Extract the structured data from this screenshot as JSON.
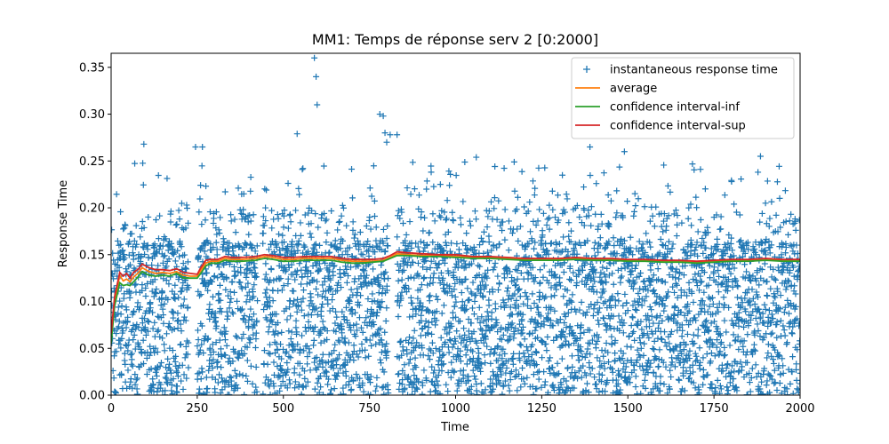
{
  "chart_data": {
    "type": "scatter",
    "title": "MM1: Temps de réponse serv 2 [0:2000]",
    "xlabel": "Time",
    "ylabel": "Response Time",
    "xlim": [
      0,
      2000
    ],
    "ylim": [
      0,
      0.365
    ],
    "x_ticks": [
      0,
      250,
      500,
      750,
      1000,
      1250,
      1500,
      1750,
      2000
    ],
    "y_ticks": [
      0.0,
      0.05,
      0.1,
      0.15,
      0.2,
      0.25,
      0.3,
      0.35
    ],
    "y_tick_labels": [
      "0.00",
      "0.05",
      "0.10",
      "0.15",
      "0.20",
      "0.25",
      "0.30",
      "0.35"
    ],
    "legend_position": "upper-right",
    "series": [
      {
        "name": "instantaneous response time",
        "kind": "scatter",
        "marker": "plus",
        "color": "#1f77b4",
        "notable_points": [
          {
            "x": 590,
            "y": 0.36
          },
          {
            "x": 595,
            "y": 0.34
          },
          {
            "x": 598,
            "y": 0.31
          },
          {
            "x": 780,
            "y": 0.3
          },
          {
            "x": 790,
            "y": 0.298
          },
          {
            "x": 795,
            "y": 0.28
          },
          {
            "x": 810,
            "y": 0.278
          },
          {
            "x": 830,
            "y": 0.278
          },
          {
            "x": 540,
            "y": 0.279
          },
          {
            "x": 95,
            "y": 0.268
          },
          {
            "x": 245,
            "y": 0.265
          },
          {
            "x": 265,
            "y": 0.265
          },
          {
            "x": 1060,
            "y": 0.254
          },
          {
            "x": 1490,
            "y": 0.26
          },
          {
            "x": 1390,
            "y": 0.265
          },
          {
            "x": 1885,
            "y": 0.255
          },
          {
            "x": 800,
            "y": 0.27
          }
        ]
      },
      {
        "name": "average",
        "kind": "line",
        "color": "#ff7f0e",
        "points": [
          [
            0,
            0.06
          ],
          [
            10,
            0.1
          ],
          [
            25,
            0.128
          ],
          [
            35,
            0.122
          ],
          [
            45,
            0.124
          ],
          [
            55,
            0.121
          ],
          [
            65,
            0.126
          ],
          [
            80,
            0.131
          ],
          [
            90,
            0.136
          ],
          [
            110,
            0.132
          ],
          [
            130,
            0.13
          ],
          [
            150,
            0.131
          ],
          [
            170,
            0.13
          ],
          [
            190,
            0.132
          ],
          [
            210,
            0.128
          ],
          [
            230,
            0.127
          ],
          [
            250,
            0.127
          ],
          [
            260,
            0.133
          ],
          [
            275,
            0.141
          ],
          [
            290,
            0.143
          ],
          [
            310,
            0.143
          ],
          [
            330,
            0.146
          ],
          [
            350,
            0.145
          ],
          [
            380,
            0.145
          ],
          [
            420,
            0.146
          ],
          [
            445,
            0.148
          ],
          [
            470,
            0.147
          ],
          [
            500,
            0.145
          ],
          [
            530,
            0.145
          ],
          [
            560,
            0.146
          ],
          [
            600,
            0.146
          ],
          [
            640,
            0.146
          ],
          [
            670,
            0.144
          ],
          [
            700,
            0.143
          ],
          [
            730,
            0.143
          ],
          [
            760,
            0.143
          ],
          [
            790,
            0.144
          ],
          [
            810,
            0.147
          ],
          [
            830,
            0.151
          ],
          [
            860,
            0.15
          ],
          [
            900,
            0.149
          ],
          [
            950,
            0.149
          ],
          [
            1000,
            0.148
          ],
          [
            1050,
            0.147
          ],
          [
            1100,
            0.147
          ],
          [
            1150,
            0.146
          ],
          [
            1200,
            0.145
          ],
          [
            1250,
            0.145
          ],
          [
            1300,
            0.145
          ],
          [
            1350,
            0.146
          ],
          [
            1400,
            0.145
          ],
          [
            1450,
            0.145
          ],
          [
            1500,
            0.144
          ],
          [
            1550,
            0.144
          ],
          [
            1600,
            0.143
          ],
          [
            1650,
            0.143
          ],
          [
            1700,
            0.142
          ],
          [
            1750,
            0.143
          ],
          [
            1800,
            0.144
          ],
          [
            1850,
            0.144
          ],
          [
            1900,
            0.145
          ],
          [
            1950,
            0.144
          ],
          [
            2000,
            0.144
          ]
        ]
      },
      {
        "name": "confidence interval-inf",
        "kind": "line",
        "color": "#2ca02c",
        "points": [
          [
            0,
            0.055
          ],
          [
            10,
            0.095
          ],
          [
            25,
            0.12
          ],
          [
            35,
            0.117
          ],
          [
            45,
            0.118
          ],
          [
            55,
            0.117
          ],
          [
            65,
            0.121
          ],
          [
            80,
            0.127
          ],
          [
            90,
            0.132
          ],
          [
            110,
            0.128
          ],
          [
            130,
            0.127
          ],
          [
            150,
            0.128
          ],
          [
            170,
            0.127
          ],
          [
            190,
            0.13
          ],
          [
            210,
            0.125
          ],
          [
            230,
            0.125
          ],
          [
            250,
            0.125
          ],
          [
            260,
            0.13
          ],
          [
            275,
            0.138
          ],
          [
            290,
            0.141
          ],
          [
            310,
            0.141
          ],
          [
            330,
            0.144
          ],
          [
            350,
            0.143
          ],
          [
            380,
            0.143
          ],
          [
            420,
            0.144
          ],
          [
            445,
            0.146
          ],
          [
            470,
            0.145
          ],
          [
            500,
            0.143
          ],
          [
            530,
            0.143
          ],
          [
            560,
            0.144
          ],
          [
            600,
            0.144
          ],
          [
            640,
            0.144
          ],
          [
            670,
            0.142
          ],
          [
            700,
            0.141
          ],
          [
            730,
            0.141
          ],
          [
            760,
            0.142
          ],
          [
            790,
            0.143
          ],
          [
            810,
            0.146
          ],
          [
            830,
            0.149
          ],
          [
            860,
            0.149
          ],
          [
            900,
            0.148
          ],
          [
            950,
            0.148
          ],
          [
            1000,
            0.147
          ],
          [
            1050,
            0.146
          ],
          [
            1100,
            0.146
          ],
          [
            1150,
            0.145
          ],
          [
            1200,
            0.144
          ],
          [
            1250,
            0.144
          ],
          [
            1300,
            0.144
          ],
          [
            1350,
            0.145
          ],
          [
            1400,
            0.144
          ],
          [
            1450,
            0.144
          ],
          [
            1500,
            0.143
          ],
          [
            1550,
            0.143
          ],
          [
            1600,
            0.142
          ],
          [
            1650,
            0.142
          ],
          [
            1700,
            0.141
          ],
          [
            1750,
            0.142
          ],
          [
            1800,
            0.143
          ],
          [
            1850,
            0.143
          ],
          [
            1900,
            0.144
          ],
          [
            1950,
            0.143
          ],
          [
            2000,
            0.143
          ]
        ]
      },
      {
        "name": "confidence interval-sup",
        "kind": "line",
        "color": "#d62728",
        "points": [
          [
            0,
            0.066
          ],
          [
            10,
            0.105
          ],
          [
            25,
            0.131
          ],
          [
            35,
            0.127
          ],
          [
            45,
            0.13
          ],
          [
            55,
            0.125
          ],
          [
            65,
            0.131
          ],
          [
            80,
            0.135
          ],
          [
            90,
            0.14
          ],
          [
            110,
            0.136
          ],
          [
            130,
            0.134
          ],
          [
            150,
            0.134
          ],
          [
            170,
            0.133
          ],
          [
            190,
            0.135
          ],
          [
            210,
            0.131
          ],
          [
            230,
            0.13
          ],
          [
            250,
            0.129
          ],
          [
            260,
            0.136
          ],
          [
            275,
            0.144
          ],
          [
            290,
            0.145
          ],
          [
            310,
            0.145
          ],
          [
            330,
            0.148
          ],
          [
            350,
            0.147
          ],
          [
            380,
            0.147
          ],
          [
            420,
            0.148
          ],
          [
            445,
            0.15
          ],
          [
            470,
            0.149
          ],
          [
            500,
            0.147
          ],
          [
            530,
            0.147
          ],
          [
            560,
            0.148
          ],
          [
            600,
            0.148
          ],
          [
            640,
            0.148
          ],
          [
            670,
            0.146
          ],
          [
            700,
            0.145
          ],
          [
            730,
            0.145
          ],
          [
            760,
            0.145
          ],
          [
            790,
            0.146
          ],
          [
            810,
            0.149
          ],
          [
            830,
            0.153
          ],
          [
            860,
            0.152
          ],
          [
            900,
            0.151
          ],
          [
            950,
            0.15
          ],
          [
            1000,
            0.15
          ],
          [
            1050,
            0.148
          ],
          [
            1100,
            0.148
          ],
          [
            1150,
            0.147
          ],
          [
            1200,
            0.146
          ],
          [
            1250,
            0.146
          ],
          [
            1300,
            0.146
          ],
          [
            1350,
            0.147
          ],
          [
            1400,
            0.146
          ],
          [
            1450,
            0.146
          ],
          [
            1500,
            0.145
          ],
          [
            1550,
            0.145
          ],
          [
            1600,
            0.144
          ],
          [
            1650,
            0.144
          ],
          [
            1700,
            0.143
          ],
          [
            1750,
            0.144
          ],
          [
            1800,
            0.145
          ],
          [
            1850,
            0.145
          ],
          [
            1900,
            0.146
          ],
          [
            1950,
            0.145
          ],
          [
            2000,
            0.145
          ]
        ]
      }
    ],
    "scatter_density_note_values": {
      "bulk_range": [
        0,
        0.18
      ],
      "gap_intervals": [
        [
          225,
          250
        ],
        [
          425,
          440
        ],
        [
          805,
          830
        ]
      ]
    }
  }
}
